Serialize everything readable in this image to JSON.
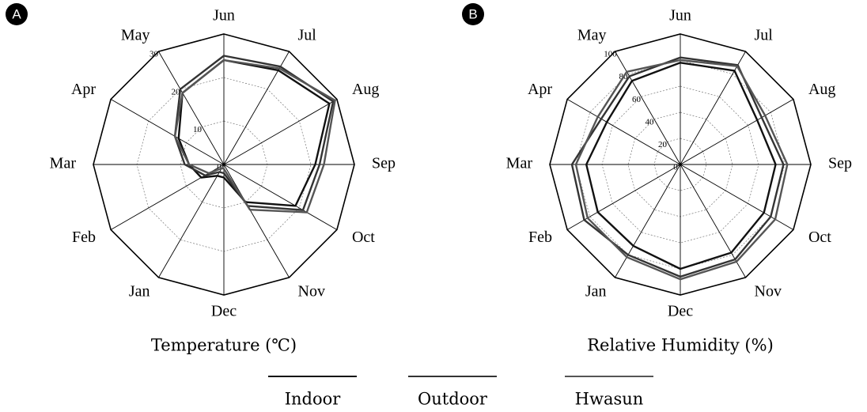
{
  "chart_data": [
    {
      "type": "radar",
      "panel": "A",
      "xlabel": "Temperature (℃)",
      "categories": [
        "Jun",
        "Jul",
        "Aug",
        "Sep",
        "Oct",
        "Nov",
        "Dec",
        "Jan",
        "Feb",
        "Mar",
        "Apr",
        "May"
      ],
      "ylim": [
        0,
        30
      ],
      "yticks": [
        0,
        10,
        20,
        30
      ],
      "grid": true,
      "series": [
        {
          "name": "Indoor",
          "color": "#111111",
          "values": [
            24,
            25,
            28,
            21,
            19,
            10,
            3,
            3,
            6,
            8,
            12,
            19
          ]
        },
        {
          "name": "Outdoor",
          "color": "#333333",
          "values": [
            25,
            26,
            29,
            22,
            21,
            11,
            2,
            2,
            5,
            9,
            13,
            20
          ]
        },
        {
          "name": "Hwasun",
          "color": "#555555",
          "values": [
            24,
            25.5,
            29.5,
            23,
            22,
            12,
            1,
            1,
            4,
            8,
            13,
            19
          ]
        }
      ]
    },
    {
      "type": "radar",
      "panel": "B",
      "xlabel": "Relative Humidity (%)",
      "categories": [
        "Jun",
        "Jul",
        "Aug",
        "Sep",
        "Oct",
        "Nov",
        "Dec",
        "Jan",
        "Feb",
        "Mar",
        "Apr",
        "May"
      ],
      "ylim": [
        0,
        100
      ],
      "yticks": [
        0,
        20,
        40,
        60,
        80,
        100
      ],
      "grid": true,
      "series": [
        {
          "name": "Indoor",
          "color": "#111111",
          "values": [
            78,
            83,
            68,
            73,
            74,
            78,
            80,
            72,
            73,
            72,
            65,
            74
          ]
        },
        {
          "name": "Outdoor",
          "color": "#333333",
          "values": [
            82,
            88,
            72,
            79,
            80,
            84,
            86,
            80,
            85,
            83,
            70,
            78
          ]
        },
        {
          "name": "Hwasun",
          "color": "#555555",
          "values": [
            80,
            87,
            75,
            82,
            84,
            86,
            88,
            82,
            82,
            80,
            73,
            82
          ]
        }
      ]
    }
  ]
}
